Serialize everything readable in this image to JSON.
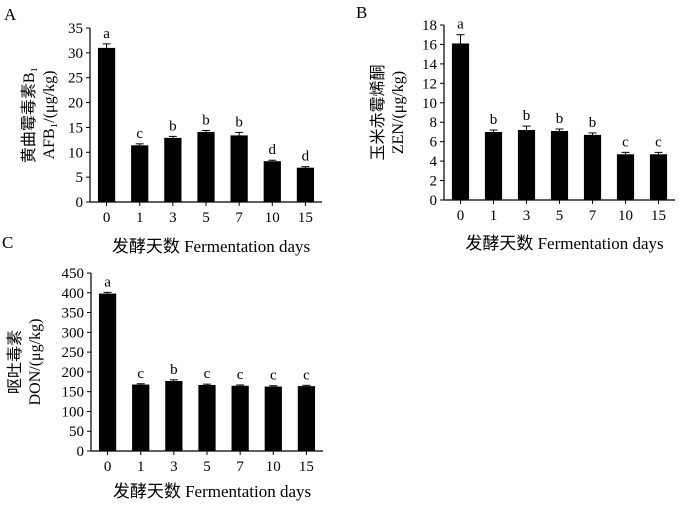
{
  "chart_data": [
    {
      "type": "bar",
      "panel": "A",
      "categories": [
        "0",
        "1",
        "3",
        "5",
        "7",
        "10",
        "15"
      ],
      "values": [
        31.0,
        11.4,
        12.9,
        14.1,
        13.4,
        8.2,
        6.9
      ],
      "errors": [
        0.8,
        0.3,
        0.3,
        0.3,
        0.6,
        0.2,
        0.2
      ],
      "significance": [
        "a",
        "c",
        "b",
        "b",
        "b",
        "d",
        "d"
      ],
      "ylabel_line1": "黄曲霉毒素B₁",
      "ylabel_line2": "AFB₁/(μg/kg)",
      "xlabel": "发酵天数  Fermentation days",
      "ylim": [
        0,
        35
      ],
      "yticks": [
        "0",
        "5",
        "10",
        "15",
        "20",
        "25",
        "30",
        "35"
      ],
      "grid": false
    },
    {
      "type": "bar",
      "panel": "B",
      "categories": [
        "0",
        "1",
        "3",
        "5",
        "7",
        "10",
        "15"
      ],
      "values": [
        16.1,
        7.0,
        7.2,
        7.1,
        6.7,
        4.7,
        4.7
      ],
      "errors": [
        0.9,
        0.2,
        0.4,
        0.2,
        0.2,
        0.2,
        0.2
      ],
      "significance": [
        "a",
        "b",
        "b",
        "b",
        "b",
        "c",
        "c"
      ],
      "ylabel_line1": "玉米赤霉烯酮",
      "ylabel_line2": "ZEN/(μg/kg)",
      "xlabel": "发酵天数  Fermentation days",
      "ylim": [
        0,
        18
      ],
      "yticks": [
        "0",
        "2",
        "4",
        "6",
        "8",
        "10",
        "12",
        "14",
        "16",
        "18"
      ],
      "grid": false
    },
    {
      "type": "bar",
      "panel": "C",
      "categories": [
        "0",
        "1",
        "3",
        "5",
        "7",
        "10",
        "15"
      ],
      "values": [
        398,
        168,
        177,
        167,
        165,
        163,
        164
      ],
      "errors": [
        3,
        2,
        3,
        2,
        2,
        2,
        2
      ],
      "significance": [
        "a",
        "c",
        "b",
        "c",
        "c",
        "c",
        "c"
      ],
      "ylabel_line1": "呕吐毒素",
      "ylabel_line2": "DON/(μg/kg)",
      "xlabel": "发酵天数  Fermentation days",
      "ylim": [
        0,
        450
      ],
      "yticks": [
        "0",
        "50",
        "100",
        "150",
        "200",
        "250",
        "300",
        "350",
        "400",
        "450"
      ],
      "grid": false
    }
  ]
}
